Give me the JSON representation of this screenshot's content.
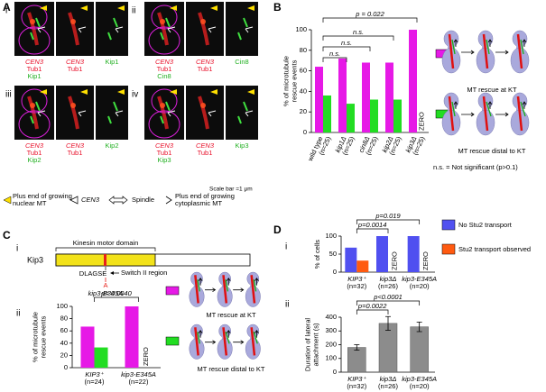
{
  "panel_a": {
    "label": "A",
    "images": [
      {
        "label": "i",
        "merge": [
          "CEN3",
          "Tub1",
          "Kip1"
        ],
        "pair": [
          "CEN3",
          "Tub1"
        ],
        "single": "Kip1"
      },
      {
        "label": "ii",
        "merge": [
          "CEN3",
          "Tub1",
          "Cin8"
        ],
        "pair": [
          "CEN3",
          "Tub1"
        ],
        "single": "Cin8"
      },
      {
        "label": "iii",
        "merge": [
          "CEN3",
          "Tub1",
          "Kip2"
        ],
        "pair": [
          "CEN3",
          "Tub1"
        ],
        "single": "Kip2"
      },
      {
        "label": "iv",
        "merge": [
          "CEN3",
          "Tub1",
          "Kip3"
        ],
        "pair": [
          "CEN3",
          "Tub1"
        ],
        "single": "Kip3"
      }
    ],
    "scale_bar": "Scale bar =1 μm",
    "legend": [
      [
        "Plus end of growing",
        "nuclear MT"
      ],
      [
        "CEN3"
      ],
      [
        "Spindle"
      ],
      [
        "Plus end of growing",
        "cytoplasmic MT"
      ]
    ]
  },
  "panel_c_diagram": {
    "label": "C",
    "subpanel": "i",
    "protein": "Kip3",
    "domain": "Kinesin motor domain",
    "motif": "DLAGSE",
    "region": "Switch II region",
    "mutation": "A",
    "allele": "kip3-E345A"
  },
  "chart_data": [
    {
      "type": "bar",
      "panel": "B",
      "y_label": [
        "% of microtubule",
        "rescue events"
      ],
      "categories": [
        "wild type",
        "kip1Δ",
        "cin8Δ",
        "kip2Δ",
        "kip3Δ"
      ],
      "category_notes": [
        "(n=25)",
        "(n=25)",
        "(n=25)",
        "(n=25)",
        "(n=25)"
      ],
      "series": [
        {
          "name": "MT rescue at KT",
          "color": "#e619e6",
          "values": [
            64,
            72,
            68,
            68,
            100
          ]
        },
        {
          "name": "MT rescue distal to KT",
          "color": "#22dd22",
          "values": [
            36,
            28,
            32,
            32,
            0
          ],
          "value_labels": [
            null,
            null,
            null,
            null,
            "ZERO"
          ]
        }
      ],
      "ylim": [
        0,
        100
      ],
      "yticks": [
        0,
        20,
        40,
        60,
        80,
        100
      ],
      "annotations": [
        "p = 0.022",
        "n.s.",
        "n.s.",
        "n.s."
      ],
      "note": "n.s. = Not significant (p>0.1)"
    },
    {
      "type": "bar",
      "subpanel": "ii",
      "y_label": [
        "% of microtubule",
        "rescue events"
      ],
      "categories": [
        "KIP3⁺",
        "kip3-E345A"
      ],
      "category_notes": [
        "(n=24)",
        "(n=22)"
      ],
      "series": [
        {
          "name": "MT rescue at KT",
          "color": "#e619e6",
          "values": [
            67,
            100
          ]
        },
        {
          "name": "MT rescue distal to KT",
          "color": "#22dd22",
          "values": [
            33,
            0
          ],
          "value_labels": [
            null,
            "ZERO"
          ]
        }
      ],
      "ylim": [
        0,
        100
      ],
      "yticks": [
        0,
        20,
        40,
        60,
        80,
        100
      ],
      "annotations": [
        "p= 0.0040"
      ]
    },
    {
      "type": "bar",
      "panel": "D",
      "subpanel": "i",
      "y_label": [
        "% of cells"
      ],
      "categories": [
        "KIP3⁺",
        "kip3Δ",
        "kip3-E345A"
      ],
      "category_notes": [
        "(n=32)",
        "(n=26)",
        "(n=20)"
      ],
      "series": [
        {
          "name": "No Stu2 transport",
          "color": "#5050f0",
          "values": [
            68,
            100,
            100
          ]
        },
        {
          "name": "Stu2 transport observed",
          "color": "#ff5a10",
          "values": [
            32,
            0,
            0
          ],
          "value_labels": [
            null,
            "ZERO",
            "ZERO"
          ]
        }
      ],
      "ylim": [
        0,
        100
      ],
      "yticks": [
        0,
        50,
        100
      ],
      "annotations": [
        "p=0.019",
        "p=0.0014"
      ]
    },
    {
      "type": "bar",
      "subpanel": "ii",
      "y_label": [
        "Duration of lateral",
        "attachment (s)"
      ],
      "categories": [
        "KIP3⁺",
        "kip3Δ",
        "kip3-E345A"
      ],
      "category_notes": [
        "(n=32)",
        "(n=26)",
        "(n=20)"
      ],
      "series": [
        {
          "color": "#8c8c8c",
          "values": [
            180,
            355,
            330
          ],
          "errors": [
            20,
            50,
            35
          ]
        }
      ],
      "ylim": [
        0,
        400
      ],
      "yticks": [
        0,
        100,
        200,
        300,
        400
      ],
      "annotations": [
        "p<0.0001",
        "p=0.0022"
      ]
    }
  ]
}
